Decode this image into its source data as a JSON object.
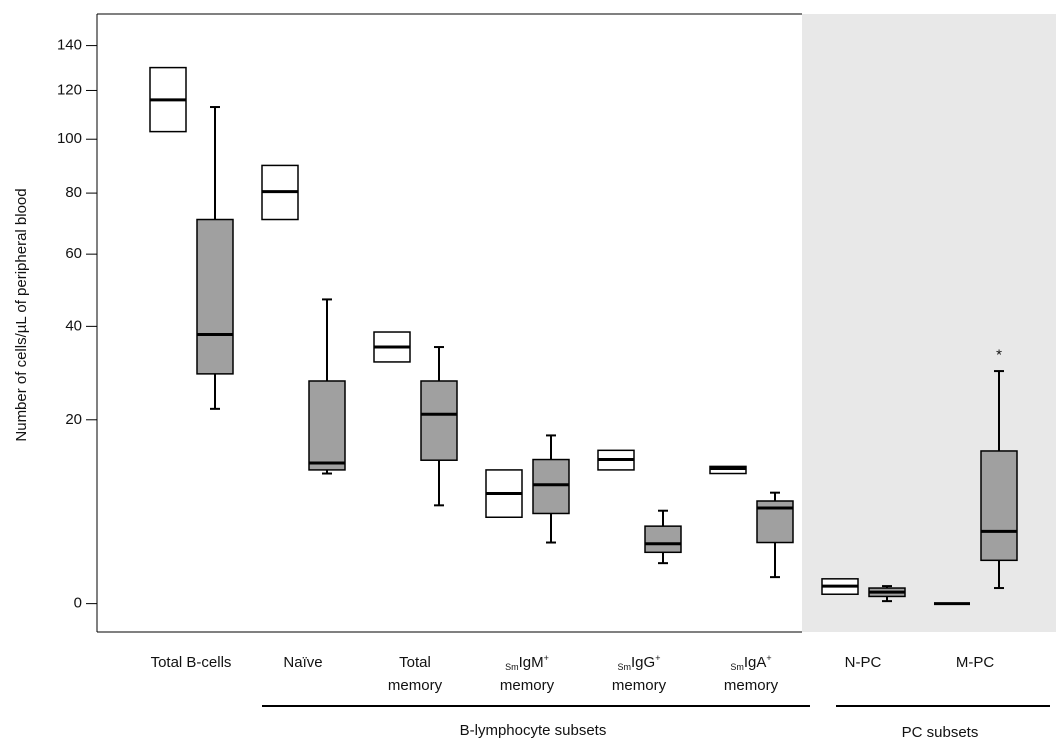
{
  "chart_data": {
    "type": "box",
    "y_label": "Number of cells/µL of peripheral blood",
    "yscale": {
      "type": "sqrt",
      "offset": 1
    },
    "ylim": [
      -0.8,
      155
    ],
    "yticks": [
      0,
      20,
      40,
      60,
      80,
      100,
      120,
      140
    ],
    "categories": [
      {
        "line1": "Total B-cells"
      },
      {
        "line1": "Naïve"
      },
      {
        "line1": "Total",
        "line2": "memory"
      },
      {
        "sub": "Sm",
        "line1": "IgM",
        "sup": "+",
        "line2": "memory"
      },
      {
        "sub": "Sm",
        "line1": "IgG",
        "sup": "+",
        "line2": "memory"
      },
      {
        "sub": "Sm",
        "line1": "IgA",
        "sup": "+",
        "line2": "memory"
      },
      {
        "line1": "N-PC"
      },
      {
        "line1": "M-PC"
      }
    ],
    "groups": [
      {
        "label": "B-lymphocyte subsets"
      },
      {
        "label": "PC subsets"
      }
    ],
    "series": [
      {
        "color": "#ffffff",
        "q3": [
          130,
          90,
          38.6,
          12,
          14.9,
          12.5,
          1.2,
          0
        ],
        "median": [
          116,
          80.5,
          35,
          8.9,
          13.5,
          12.2,
          0.8,
          0
        ],
        "q1": [
          103,
          71,
          31.6,
          6.2,
          12,
          11.5,
          0.4,
          0
        ]
      },
      {
        "color": "#a0a0a0",
        "high": [
          113,
          47,
          35,
          17.3,
          6.9,
          9,
          0.8,
          29.6
        ],
        "q3": [
          71,
          27.5,
          27.5,
          13.5,
          5.3,
          8,
          0.7,
          14.8
        ],
        "median": [
          38,
          13,
          21,
          10,
          3.7,
          7.2,
          0.5,
          4.8
        ],
        "q1": [
          29,
          12,
          13.4,
          6.6,
          3,
          3.8,
          0.3,
          2.4
        ],
        "low": [
          22,
          11.5,
          7.5,
          3.8,
          2.2,
          1.3,
          0.1,
          0.7
        ],
        "outliers": [
          null,
          null,
          null,
          null,
          null,
          null,
          null,
          34
        ],
        "outlier_label": "*"
      }
    ]
  }
}
